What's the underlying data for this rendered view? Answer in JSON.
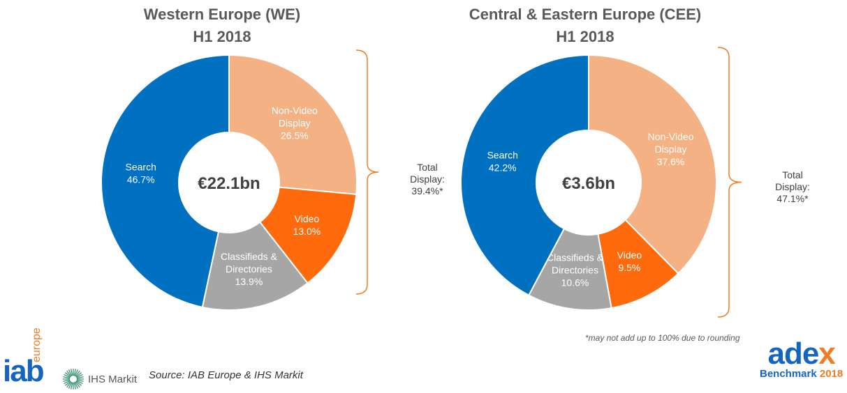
{
  "chart_data": [
    {
      "type": "pie",
      "variant": "donut",
      "title": "Western Europe (WE)",
      "subtitle": "H1 2018",
      "center_label": "€22.1bn",
      "slices": [
        {
          "label": "Non-Video Display",
          "lines": [
            "Non-Video",
            "Display"
          ],
          "value": 26.5,
          "display": "26.5%",
          "color": "#F4B183"
        },
        {
          "label": "Video",
          "lines": [
            "Video"
          ],
          "value": 13.0,
          "display": "13.0%",
          "color": "#FF6A0D"
        },
        {
          "label": "Classifieds & Directories",
          "lines": [
            "Classifieds &",
            "Directories"
          ],
          "value": 13.9,
          "display": "13.9%",
          "color": "#A6A6A6"
        },
        {
          "label": "Search",
          "lines": [
            "Search"
          ],
          "value": 46.7,
          "display": "46.7%",
          "color": "#0070C0"
        }
      ],
      "annotation": {
        "lines": [
          "Total",
          "Display:",
          "39.4%*"
        ],
        "brace_color": "#F07C22"
      }
    },
    {
      "type": "pie",
      "variant": "donut",
      "title": "Central & Eastern Europe (CEE)",
      "subtitle": "H1 2018",
      "center_label": "€3.6bn",
      "slices": [
        {
          "label": "Non-Video Display",
          "lines": [
            "Non-Video",
            "Display"
          ],
          "value": 37.6,
          "display": "37.6%",
          "color": "#F4B183"
        },
        {
          "label": "Video",
          "lines": [
            "Video"
          ],
          "value": 9.5,
          "display": "9.5%",
          "color": "#FF6A0D"
        },
        {
          "label": "Classifieds & Directories",
          "lines": [
            "Classifieds &",
            "Directories"
          ],
          "value": 10.6,
          "display": "10.6%",
          "color": "#A6A6A6"
        },
        {
          "label": "Search",
          "lines": [
            "Search"
          ],
          "value": 42.2,
          "display": "42.2%",
          "color": "#0070C0"
        }
      ],
      "annotation": {
        "lines": [
          "Total",
          "Display:",
          "47.1%*"
        ],
        "brace_color": "#F07C22"
      }
    }
  ],
  "footer": {
    "note": "*may not add up to 100% due to rounding",
    "source": "Source: IAB Europe & IHS Markit",
    "logos": {
      "iab": "iab",
      "iab_suffix": ".europe",
      "ihs": "IHS Markit",
      "adex_a": "ade",
      "adex_b": "x",
      "adex_sub": "Benchmark",
      "adex_year": "2018"
    }
  }
}
